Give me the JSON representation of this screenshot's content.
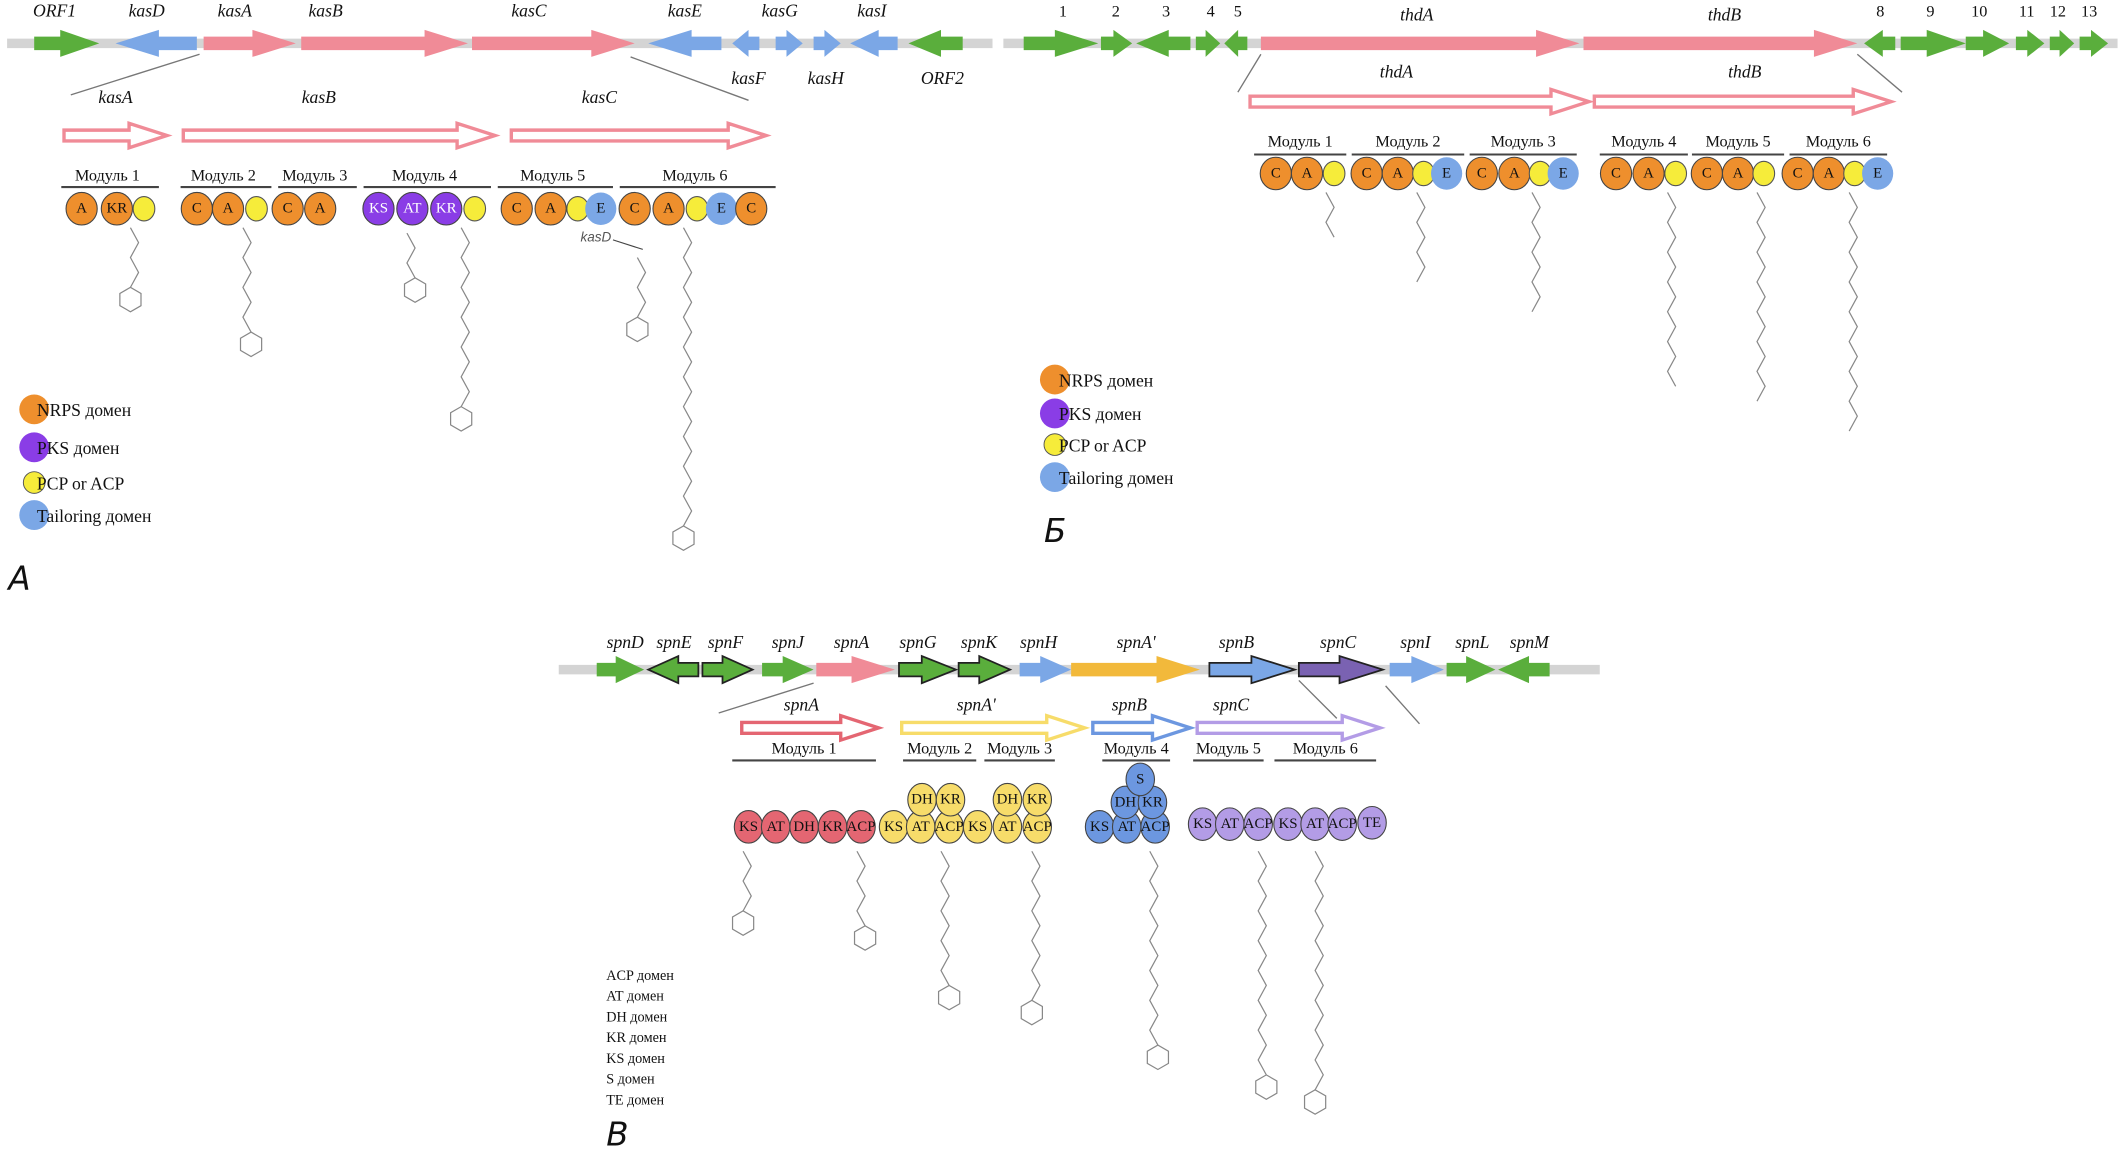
{
  "colors": {
    "track": "#d4d4d4",
    "green": "#5aae3c",
    "blue": "#7ba7e6",
    "pink": "#f08b97",
    "nrps": "#ee8f2d",
    "pks": "#8a3de6",
    "pcp": "#f6ec3a",
    "tailoring": "#7ba7e6",
    "spn_red": "#e46672",
    "spn_yellow": "#f7dc6a",
    "spn_blue": "#6c97e0",
    "spn_lavender": "#b39ce6",
    "spn_gold": "#f2b93b",
    "spn_purple": "#7a62b2"
  },
  "panelA": {
    "label": "А",
    "genes": [
      {
        "label": "ORF1",
        "color": "green",
        "dir": "right"
      },
      {
        "label": "kasD",
        "color": "blue",
        "dir": "left"
      },
      {
        "label": "kasA",
        "color": "pink",
        "dir": "right"
      },
      {
        "label": "kasB",
        "color": "pink",
        "dir": "right"
      },
      {
        "label": "kasC",
        "color": "pink",
        "dir": "right"
      },
      {
        "label": "kasE",
        "color": "blue",
        "dir": "left"
      },
      {
        "label": "kasF",
        "color": "blue",
        "dir": "left"
      },
      {
        "label": "kasG",
        "color": "blue",
        "dir": "right"
      },
      {
        "label": "kasH",
        "color": "blue",
        "dir": "right"
      },
      {
        "label": "kasI",
        "color": "blue",
        "dir": "left"
      },
      {
        "label": "ORF2",
        "color": "green",
        "dir": "left"
      }
    ],
    "expanded": [
      "kasA",
      "kasB",
      "kasC"
    ],
    "modules": [
      "Модуль 1",
      "Модуль 2",
      "Модуль 3",
      "Модуль 4",
      "Модуль 5",
      "Модуль 6"
    ],
    "domains": [
      {
        "t": "A",
        "k": "nrps"
      },
      {
        "t": "KR",
        "k": "nrps"
      },
      {
        "t": "",
        "k": "pcp"
      },
      {
        "t": "C",
        "k": "nrps"
      },
      {
        "t": "A",
        "k": "nrps"
      },
      {
        "t": "",
        "k": "pcp"
      },
      {
        "t": "C",
        "k": "nrps"
      },
      {
        "t": "A",
        "k": "nrps"
      },
      {
        "t": "KS",
        "k": "pks"
      },
      {
        "t": "AT",
        "k": "pks"
      },
      {
        "t": "KR",
        "k": "pks"
      },
      {
        "t": "",
        "k": "pcp"
      },
      {
        "t": "C",
        "k": "nrps"
      },
      {
        "t": "A",
        "k": "nrps"
      },
      {
        "t": "",
        "k": "pcp"
      },
      {
        "t": "E",
        "k": "tailoring"
      },
      {
        "t": "C",
        "k": "nrps"
      },
      {
        "t": "A",
        "k": "nrps"
      },
      {
        "t": "",
        "k": "pcp"
      },
      {
        "t": "E",
        "k": "tailoring"
      },
      {
        "t": "C",
        "k": "nrps"
      }
    ],
    "annotation": "kasD",
    "legend": [
      {
        "k": "nrps",
        "text": "NRPS домен"
      },
      {
        "k": "pks",
        "text": "PKS домен"
      },
      {
        "k": "pcp",
        "text": "PCP or ACP"
      },
      {
        "k": "tailoring",
        "text": "Tailoring домен"
      }
    ]
  },
  "panelB": {
    "label": "Б",
    "genes": [
      {
        "label": "1",
        "color": "green",
        "dir": "right"
      },
      {
        "label": "2",
        "color": "green",
        "dir": "right"
      },
      {
        "label": "3",
        "color": "green",
        "dir": "left"
      },
      {
        "label": "4",
        "color": "green",
        "dir": "right"
      },
      {
        "label": "5",
        "color": "green",
        "dir": "left"
      },
      {
        "label": "thdA",
        "color": "pink",
        "dir": "right"
      },
      {
        "label": "thdB",
        "color": "pink",
        "dir": "right"
      },
      {
        "label": "8",
        "color": "green",
        "dir": "left"
      },
      {
        "label": "9",
        "color": "green",
        "dir": "right"
      },
      {
        "label": "10",
        "color": "green",
        "dir": "right"
      },
      {
        "label": "11",
        "color": "green",
        "dir": "right"
      },
      {
        "label": "12",
        "color": "green",
        "dir": "right"
      },
      {
        "label": "13",
        "color": "green",
        "dir": "right"
      }
    ],
    "expanded": [
      "thdA",
      "thdB"
    ],
    "modules": [
      "Модуль 1",
      "Модуль 2",
      "Модуль 3",
      "Модуль 4",
      "Модуль 5",
      "Модуль 6"
    ],
    "domains": [
      {
        "t": "C",
        "k": "nrps"
      },
      {
        "t": "A",
        "k": "nrps"
      },
      {
        "t": "",
        "k": "pcp"
      },
      {
        "t": "C",
        "k": "nrps"
      },
      {
        "t": "A",
        "k": "nrps"
      },
      {
        "t": "",
        "k": "pcp"
      },
      {
        "t": "E",
        "k": "tailoring"
      },
      {
        "t": "C",
        "k": "nrps"
      },
      {
        "t": "A",
        "k": "nrps"
      },
      {
        "t": "",
        "k": "pcp"
      },
      {
        "t": "E",
        "k": "tailoring"
      },
      {
        "t": "C",
        "k": "nrps"
      },
      {
        "t": "A",
        "k": "nrps"
      },
      {
        "t": "",
        "k": "pcp"
      },
      {
        "t": "C",
        "k": "nrps"
      },
      {
        "t": "A",
        "k": "nrps"
      },
      {
        "t": "",
        "k": "pcp"
      },
      {
        "t": "C",
        "k": "nrps"
      },
      {
        "t": "A",
        "k": "nrps"
      },
      {
        "t": "",
        "k": "pcp"
      },
      {
        "t": "E",
        "k": "tailoring"
      }
    ],
    "legend": [
      {
        "k": "nrps",
        "text": "NRPS домен"
      },
      {
        "k": "pks",
        "text": "PKS домен"
      },
      {
        "k": "pcp",
        "text": "PCP or ACP"
      },
      {
        "k": "tailoring",
        "text": "Tailoring домен"
      }
    ]
  },
  "panelC": {
    "label": "В",
    "genes": [
      {
        "label": "spnD",
        "color": "green",
        "dir": "right"
      },
      {
        "label": "spnE",
        "color": "green",
        "dir": "left",
        "outline": true
      },
      {
        "label": "spnF",
        "color": "green",
        "dir": "right",
        "outline": true
      },
      {
        "label": "spnJ",
        "color": "green",
        "dir": "right"
      },
      {
        "label": "spnA",
        "color": "pink",
        "dir": "right"
      },
      {
        "label": "spnG",
        "color": "green",
        "dir": "right",
        "outline": true
      },
      {
        "label": "spnK",
        "color": "green",
        "dir": "right",
        "outline": true
      },
      {
        "label": "spnH",
        "color": "blue",
        "dir": "right"
      },
      {
        "label": "spnA'",
        "color": "spn_gold",
        "dir": "right"
      },
      {
        "label": "spnB",
        "color": "blue",
        "dir": "right",
        "outline": true
      },
      {
        "label": "spnC",
        "color": "spn_purple",
        "dir": "right",
        "outline": true
      },
      {
        "label": "spnI",
        "color": "blue",
        "dir": "right"
      },
      {
        "label": "spnL",
        "color": "green",
        "dir": "right"
      },
      {
        "label": "spnM",
        "color": "green",
        "dir": "left"
      }
    ],
    "expanded": [
      {
        "label": "spnA",
        "color": "spn_red"
      },
      {
        "label": "spnA'",
        "color": "spn_yellow"
      },
      {
        "label": "spnB",
        "color": "spn_blue"
      },
      {
        "label": "spnC",
        "color": "spn_lavender"
      }
    ],
    "modules": [
      "Модуль 1",
      "Модуль 2",
      "Модуль 3",
      "Модуль 4",
      "Модуль 5",
      "Модуль 6"
    ],
    "domains": [
      {
        "t": "KS",
        "k": "spn_red"
      },
      {
        "t": "AT",
        "k": "spn_red"
      },
      {
        "t": "DH",
        "k": "spn_red"
      },
      {
        "t": "KR",
        "k": "spn_red"
      },
      {
        "t": "ACP",
        "k": "spn_red"
      },
      {
        "t": "KS",
        "k": "spn_yellow"
      },
      {
        "t": "AT",
        "k": "spn_yellow"
      },
      {
        "t": "ACP",
        "k": "spn_yellow"
      },
      {
        "t": "DH",
        "k": "spn_yellow"
      },
      {
        "t": "KR",
        "k": "spn_yellow"
      },
      {
        "t": "KS",
        "k": "spn_yellow"
      },
      {
        "t": "AT",
        "k": "spn_yellow"
      },
      {
        "t": "ACP",
        "k": "spn_yellow"
      },
      {
        "t": "DH",
        "k": "spn_yellow"
      },
      {
        "t": "KR",
        "k": "spn_yellow"
      },
      {
        "t": "KS",
        "k": "spn_blue"
      },
      {
        "t": "AT",
        "k": "spn_blue"
      },
      {
        "t": "ACP",
        "k": "spn_blue"
      },
      {
        "t": "DH",
        "k": "spn_blue"
      },
      {
        "t": "KR",
        "k": "spn_blue"
      },
      {
        "t": "S",
        "k": "spn_blue"
      },
      {
        "t": "KS",
        "k": "spn_lavender"
      },
      {
        "t": "AT",
        "k": "spn_lavender"
      },
      {
        "t": "ACP",
        "k": "spn_lavender"
      },
      {
        "t": "KS",
        "k": "spn_lavender"
      },
      {
        "t": "AT",
        "k": "spn_lavender"
      },
      {
        "t": "ACP",
        "k": "spn_lavender"
      },
      {
        "t": "TE",
        "k": "spn_lavender"
      }
    ],
    "legend": [
      "ACP домен",
      "AT домен",
      "DH домен",
      "KR домен",
      "KS домен",
      "S домен",
      "TE домен"
    ]
  }
}
